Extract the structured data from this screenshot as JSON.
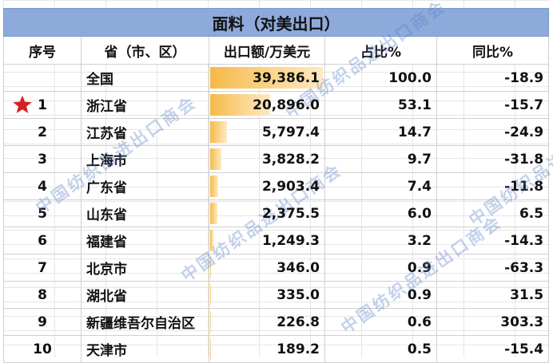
{
  "title": "面料（对美出口）",
  "headers": {
    "idx": "序号",
    "province": "省（市、区）",
    "export": "出口额/万美元",
    "share": "占比%",
    "yoy": "同比%"
  },
  "rows": [
    {
      "idx": "",
      "province": "全国",
      "export": "39,386.1",
      "export_value": 39386.1,
      "share": "100.0",
      "yoy": "-18.9"
    },
    {
      "idx": "1",
      "province": "浙江省",
      "export": "20,896.0",
      "export_value": 20896.0,
      "share": "53.1",
      "yoy": "-15.7"
    },
    {
      "idx": "2",
      "province": "江苏省",
      "export": "5,797.4",
      "export_value": 5797.4,
      "share": "14.7",
      "yoy": "-24.9"
    },
    {
      "idx": "3",
      "province": "上海市",
      "export": "3,828.2",
      "export_value": 3828.2,
      "share": "9.7",
      "yoy": "-31.8"
    },
    {
      "idx": "4",
      "province": "广东省",
      "export": "2,903.4",
      "export_value": 2903.4,
      "share": "7.4",
      "yoy": "-11.8"
    },
    {
      "idx": "5",
      "province": "山东省",
      "export": "2,375.5",
      "export_value": 2375.5,
      "share": "6.0",
      "yoy": "6.5"
    },
    {
      "idx": "6",
      "province": "福建省",
      "export": "1,249.3",
      "export_value": 1249.3,
      "share": "3.2",
      "yoy": "-14.3"
    },
    {
      "idx": "7",
      "province": "北京市",
      "export": "346.0",
      "export_value": 346.0,
      "share": "0.9",
      "yoy": "-63.3"
    },
    {
      "idx": "8",
      "province": "湖北省",
      "export": "335.0",
      "export_value": 335.0,
      "share": "0.9",
      "yoy": "31.5"
    },
    {
      "idx": "9",
      "province": "新疆维吾尔自治区",
      "export": "226.8",
      "export_value": 226.8,
      "share": "0.6",
      "yoy": "303.3"
    },
    {
      "idx": "10",
      "province": "天津市",
      "export": "189.2",
      "export_value": 189.2,
      "share": "0.5",
      "yoy": "-15.4"
    }
  ],
  "watermark": "中国纺织品进出口商会",
  "colors": {
    "title_bg": "#8eaadb",
    "bar": "#f5b94a",
    "star": "#d42020",
    "watermark": "#5b7fc7"
  }
}
